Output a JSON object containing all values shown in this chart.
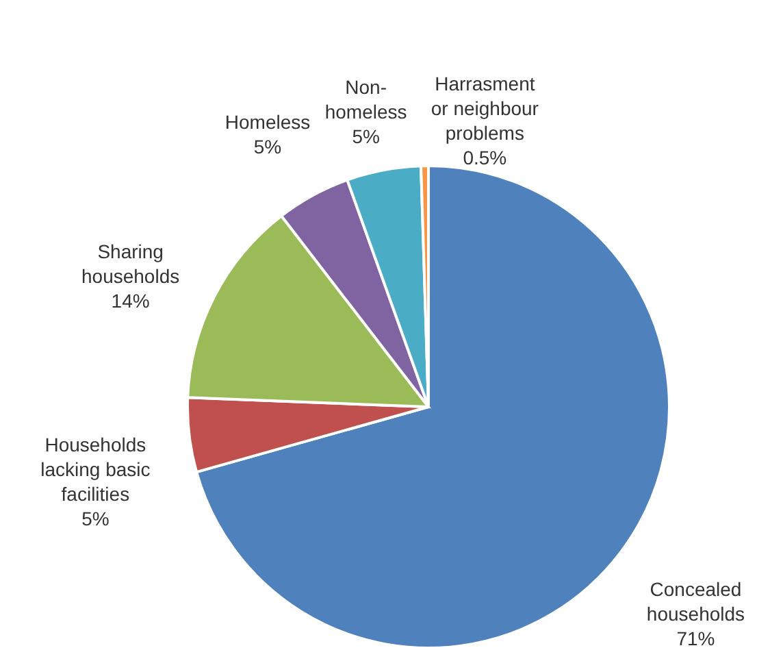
{
  "chart_data": {
    "type": "pie",
    "categories": [
      "Concealed\nhouseholds",
      "Households\nlacking basic\nfacilities",
      "Sharing\nhouseholds",
      "Homeless",
      "Non-\nhomeless",
      "Harrasment\nor neighbour\nproblems"
    ],
    "values": [
      71,
      5,
      14,
      5,
      5,
      0.5
    ],
    "colors": [
      "#4f81bd",
      "#c0504d",
      "#9bbb59",
      "#8064a2",
      "#4bacc6",
      "#f79646"
    ],
    "value_labels": [
      "71%",
      "5%",
      "14%",
      "5%",
      "5%",
      "0.5%"
    ]
  }
}
